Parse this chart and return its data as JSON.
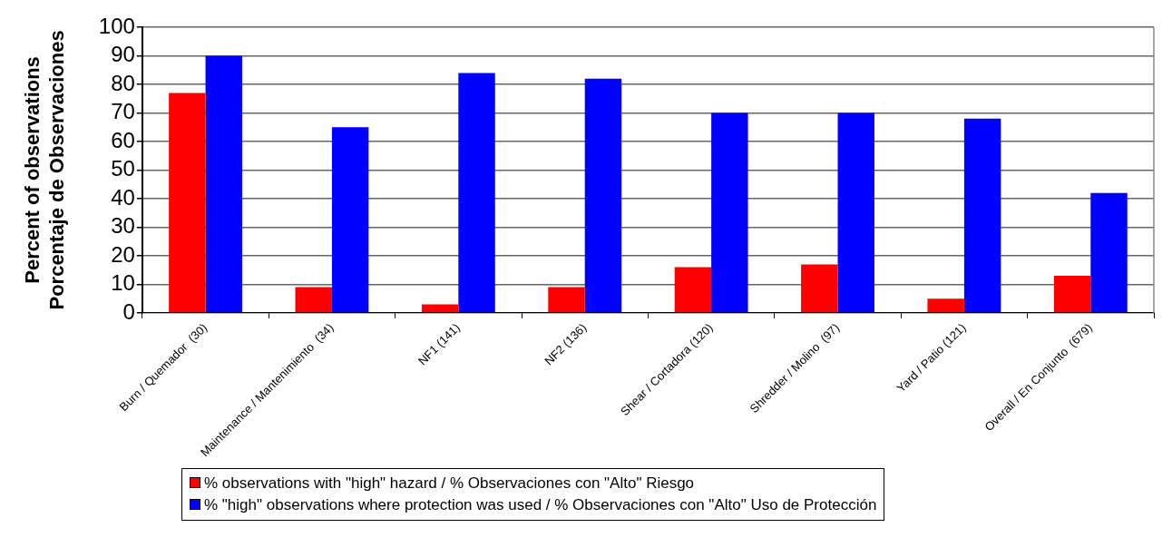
{
  "chart_data": {
    "type": "bar",
    "ylabel": "Percent of observations\nPorcentaje de Observaciones",
    "categories": [
      "Burn / Quemador  (30)",
      "Maintenance / Mantenimiento  (34)",
      "NF1 (141)",
      "NF2 (136)",
      "Shear / Cortadora (120)",
      "Shredder / Molino  (97)",
      "Yard / Patio (121)",
      "Overall / En Conjunto  (679)"
    ],
    "series": [
      {
        "name": "% observations with \"high\" hazard / % Observaciones con \"Alto\" Riesgo",
        "color": "#ff0000",
        "values": [
          77,
          9,
          3,
          9,
          16,
          17,
          5,
          13
        ]
      },
      {
        "name": "% \"high\" observations where protection was used / % Observaciones con \"Alto\" Uso de Protección",
        "color": "#0000ff",
        "values": [
          90,
          65,
          84,
          82,
          70,
          70,
          68,
          42
        ]
      }
    ],
    "ylim": [
      0,
      100
    ],
    "yticks": [
      0,
      10,
      20,
      30,
      40,
      50,
      60,
      70,
      80,
      90,
      100
    ],
    "grid": "y",
    "legend": "bottom"
  }
}
